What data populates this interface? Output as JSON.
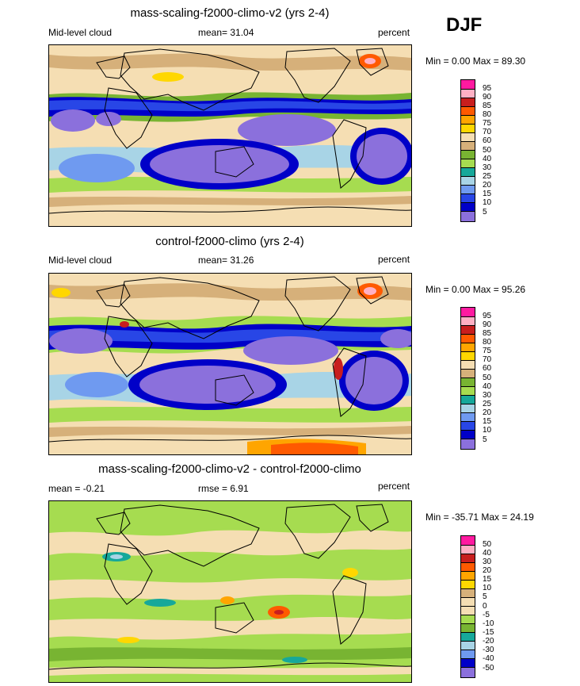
{
  "season": "DJF",
  "colors": {
    "violet": "#8b70dc",
    "navy": "#0000c8",
    "blue": "#2846e6",
    "skyblue": "#6f9af0",
    "paleblue": "#a8d4e6",
    "teal": "#16a89a",
    "ltgreen": "#a6dc50",
    "green": "#78b432",
    "tan": "#d6b07a",
    "wheat": "#f5deb3",
    "yellow": "#ffd700",
    "orange": "#ffa500",
    "redorange": "#ff5a00",
    "red": "#c81e1e",
    "pink": "#ffb0c4",
    "magenta": "#ff1aa0"
  },
  "chart_data": [
    {
      "type": "heatmap",
      "title": "mass-scaling-f2000-climo-v2 (yrs 2-4)",
      "left_label": "Mid-level cloud",
      "mean_text": "mean=  31.04",
      "units": "percent",
      "min_max_text": "Min =   0.00 Max =  89.30",
      "colorbar_levels": [
        "95",
        "90",
        "85",
        "80",
        "75",
        "70",
        "60",
        "50",
        "40",
        "30",
        "25",
        "20",
        "15",
        "10",
        "5"
      ],
      "colorbar_colors": [
        "#ff1aa0",
        "#ffb0c4",
        "#c81e1e",
        "#ff5a00",
        "#ffa500",
        "#ffd700",
        "#f5deb3",
        "#d6b07a",
        "#78b432",
        "#a6dc50",
        "#16a89a",
        "#a8d4e6",
        "#6f9af0",
        "#2846e6",
        "#0000c8",
        "#8b70dc"
      ]
    },
    {
      "type": "heatmap",
      "title": "control-f2000-climo (yrs 2-4)",
      "left_label": "Mid-level cloud",
      "mean_text": "mean=  31.26",
      "units": "percent",
      "min_max_text": "Min =   0.00 Max =  95.26",
      "colorbar_levels": [
        "95",
        "90",
        "85",
        "80",
        "75",
        "70",
        "60",
        "50",
        "40",
        "30",
        "25",
        "20",
        "15",
        "10",
        "5"
      ],
      "colorbar_colors": [
        "#ff1aa0",
        "#ffb0c4",
        "#c81e1e",
        "#ff5a00",
        "#ffa500",
        "#ffd700",
        "#f5deb3",
        "#d6b07a",
        "#78b432",
        "#a6dc50",
        "#16a89a",
        "#a8d4e6",
        "#6f9af0",
        "#2846e6",
        "#0000c8",
        "#8b70dc"
      ]
    },
    {
      "type": "heatmap",
      "title": "mass-scaling-f2000-climo-v2 - control-f2000-climo",
      "left_label": "mean =  -0.21",
      "mean_text": "rmse =   6.91",
      "units": "percent",
      "min_max_text": "Min = -35.71 Max =  24.19",
      "colorbar_levels": [
        "50",
        "40",
        "30",
        "20",
        "15",
        "10",
        "5",
        "0",
        "-5",
        "-10",
        "-15",
        "-20",
        "-30",
        "-40",
        "-50"
      ],
      "colorbar_colors": [
        "#ff1aa0",
        "#ffb0c4",
        "#c81e1e",
        "#ff5a00",
        "#ffa500",
        "#ffd700",
        "#d6b07a",
        "#f5deb3",
        "#f5deb3",
        "#a6dc50",
        "#78b432",
        "#16a89a",
        "#a8d4e6",
        "#6f9af0",
        "#0000c8",
        "#8b70dc"
      ]
    }
  ]
}
